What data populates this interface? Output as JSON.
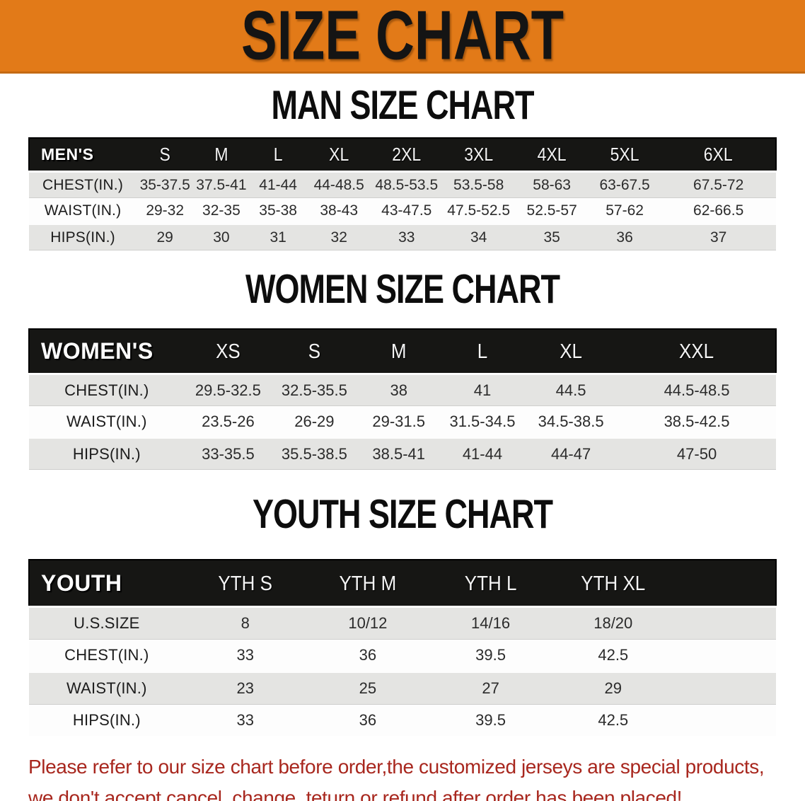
{
  "banner": {
    "title": "SIZE CHART"
  },
  "sections": {
    "men": {
      "heading": "MAN SIZE CHART"
    },
    "women": {
      "heading": "WOMEN SIZE CHART"
    },
    "youth": {
      "heading": "YOUTH SIZE CHART"
    }
  },
  "tables": {
    "men": {
      "label": "MEN'S",
      "columns": [
        "S",
        "M",
        "L",
        "XL",
        "2XL",
        "3XL",
        "4XL",
        "5XL",
        "6XL"
      ],
      "rows": [
        {
          "label": "CHEST(IN.)",
          "values": [
            "35-37.5",
            "37.5-41",
            "41-44",
            "44-48.5",
            "48.5-53.5",
            "53.5-58",
            "58-63",
            "63-67.5",
            "67.5-72"
          ]
        },
        {
          "label": "WAIST(IN.)",
          "values": [
            "29-32",
            "32-35",
            "35-38",
            "38-43",
            "43-47.5",
            "47.5-52.5",
            "52.5-57",
            "57-62",
            "62-66.5"
          ]
        },
        {
          "label": "HIPS(IN.)",
          "values": [
            "29",
            "30",
            "31",
            "32",
            "33",
            "34",
            "35",
            "36",
            "37"
          ]
        }
      ]
    },
    "women": {
      "label": "WOMEN'S",
      "columns": [
        "XS",
        "S",
        "M",
        "L",
        "XL",
        "XXL"
      ],
      "rows": [
        {
          "label": "CHEST(IN.)",
          "values": [
            "29.5-32.5",
            "32.5-35.5",
            "38",
            "41",
            "44.5",
            "44.5-48.5"
          ]
        },
        {
          "label": "WAIST(IN.)",
          "values": [
            "23.5-26",
            "26-29",
            "29-31.5",
            "31.5-34.5",
            "34.5-38.5",
            "38.5-42.5"
          ]
        },
        {
          "label": "HIPS(IN.)",
          "values": [
            "33-35.5",
            "35.5-38.5",
            "38.5-41",
            "41-44",
            "44-47",
            "47-50"
          ]
        }
      ]
    },
    "youth": {
      "label": "YOUTH",
      "columns": [
        "YTH S",
        "YTH M",
        "YTH L",
        "YTH XL"
      ],
      "rows": [
        {
          "label": "U.S.SIZE",
          "values": [
            "8",
            "10/12",
            "14/16",
            "18/20"
          ]
        },
        {
          "label": "CHEST(IN.)",
          "values": [
            "33",
            "36",
            "39.5",
            "42.5"
          ]
        },
        {
          "label": "WAIST(IN.)",
          "values": [
            "23",
            "25",
            "27",
            "29"
          ]
        },
        {
          "label": "HIPS(IN.)",
          "values": [
            "33",
            "36",
            "39.5",
            "42.5"
          ]
        }
      ]
    }
  },
  "notice": {
    "line1": "Please refer to our size chart before order,the customized jerseys are special products,",
    "line2": "we don't accept cancel, change, teturn or refund after order has been placed!"
  },
  "colors": {
    "banner_orange": "#E27A18",
    "header_black": "#161614",
    "row_gray": "#E4E4E2",
    "row_white": "#FDFDFD",
    "notice_red": "#A8271E"
  }
}
